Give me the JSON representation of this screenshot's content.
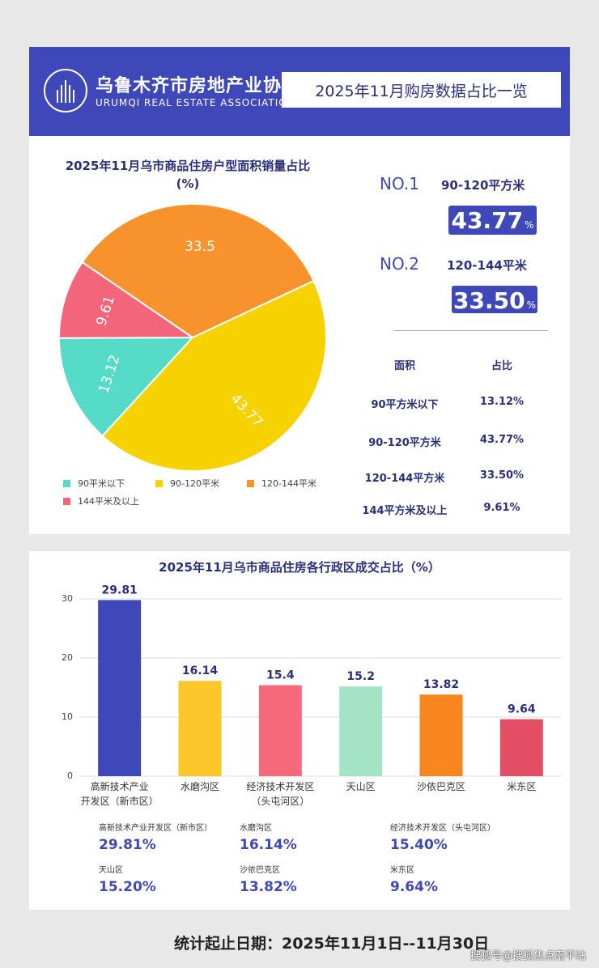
{
  "header": {
    "org_name_cn": "乌鲁木齐市房地产业协会",
    "org_name_en": "URUMQI REAL ESTATE ASSOCIATION",
    "title": "2025年11月购房数据占比一览"
  },
  "pie_section": {
    "title": "2025年11月乌市商品住房户型面积销量占比",
    "unit": "(%)",
    "rank1": {
      "no": "NO.1",
      "area": "90-120平方米",
      "value": "43.77",
      "pct": "%"
    },
    "rank2": {
      "no": "NO.2",
      "area": "120-144平米",
      "value": "33.50",
      "pct": "%"
    },
    "table": {
      "headers": [
        "面积",
        "占比"
      ],
      "rows": [
        [
          "90平方米以下",
          "13.12%"
        ],
        [
          "90-120平方米",
          "43.77%"
        ],
        [
          "120-144平方米",
          "33.50%"
        ],
        [
          "144平方米及以上",
          "9.61%"
        ]
      ]
    }
  },
  "bar_section": {
    "title": "2025年11月乌市商品住房各行政区成交占比（%）",
    "stats": [
      {
        "label": "高新技术产业开发区（新市区）",
        "value": "29.81%"
      },
      {
        "label": "水磨沟区",
        "value": "16.14%"
      },
      {
        "label": "经济技术开发区（头屯河区）",
        "value": "15.40%"
      },
      {
        "label": "天山区",
        "value": "15.20%"
      },
      {
        "label": "沙依巴克区",
        "value": "13.82%"
      },
      {
        "label": "米东区",
        "value": "9.64%"
      }
    ]
  },
  "footer": {
    "date_range": "统计起止日期：2025年11月1日--11月30日",
    "watermark": "搜狐号@搜狐焦点南平站"
  },
  "chart_data": [
    {
      "type": "pie",
      "categories": [
        "90平米以下",
        "90-120平米",
        "120-144平米",
        "144平米及以上"
      ],
      "values": [
        13.12,
        43.77,
        33.5,
        9.61
      ],
      "data_labels": [
        "13.12",
        "43.77",
        "33.5",
        "9.61"
      ],
      "colors": [
        "#55dbc8",
        "#f6d200",
        "#f7922c",
        "#f2657a"
      ],
      "legend_position": "bottom"
    },
    {
      "type": "bar",
      "categories": [
        [
          "高新技术产业",
          "开发区（新市区）"
        ],
        [
          "水磨沟区"
        ],
        [
          "经济技术开发区",
          "（头屯河区）"
        ],
        [
          "天山区"
        ],
        [
          "沙依巴克区"
        ],
        [
          "米东区"
        ]
      ],
      "values": [
        29.81,
        16.14,
        15.4,
        15.2,
        13.82,
        9.64
      ],
      "data_labels": [
        "29.81",
        "16.14",
        "15.4",
        "15.2",
        "13.82",
        "9.64"
      ],
      "colors": [
        "#3f48b8",
        "#fbc72a",
        "#f6697b",
        "#a4e3c6",
        "#f7861f",
        "#e44e64"
      ],
      "ylim": [
        0,
        30
      ],
      "yticks": [
        0,
        10,
        20,
        30
      ],
      "grid": true
    }
  ]
}
